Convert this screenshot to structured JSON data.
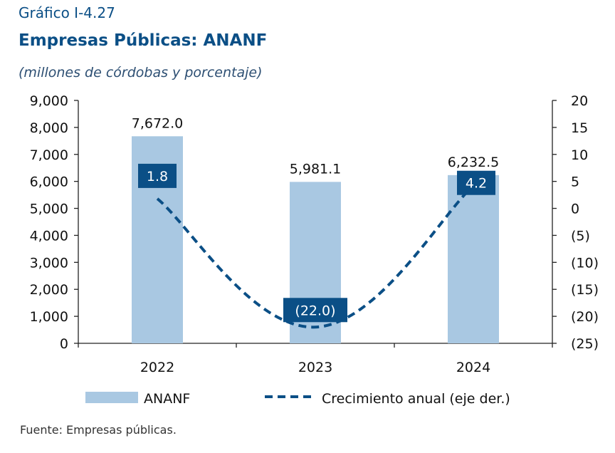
{
  "header": {
    "label": "Gráfico I-4.27",
    "title": "Empresas Públicas: ANANF",
    "subtitle": "(millones de córdobas y porcentaje)"
  },
  "source": "Fuente: Empresas públicas.",
  "colors": {
    "bar": "#a9c8e2",
    "line": "#0b4f86",
    "title": "#0b4f86",
    "axis": "#222222"
  },
  "chart_data": {
    "type": "bar",
    "categories": [
      "2022",
      "2023",
      "2024"
    ],
    "series": [
      {
        "name": "ANANF",
        "type": "bar",
        "axis": "left",
        "values": [
          7672.0,
          5981.1,
          6232.5
        ],
        "labels": [
          "7,672.0",
          "5,981.1",
          "6,232.5"
        ]
      },
      {
        "name": "Crecimiento anual (eje der.)",
        "type": "line",
        "style": "dashed",
        "axis": "right",
        "values": [
          1.8,
          -22.0,
          4.2
        ],
        "labels": [
          "1.8",
          "(22.0)",
          "4.2"
        ]
      }
    ],
    "y_left": {
      "range": [
        0,
        9000
      ],
      "ticks": [
        0,
        1000,
        2000,
        3000,
        4000,
        5000,
        6000,
        7000,
        8000,
        9000
      ],
      "tick_labels": [
        "0",
        "1,000",
        "2,000",
        "3,000",
        "4,000",
        "5,000",
        "6,000",
        "7,000",
        "8,000",
        "9,000"
      ]
    },
    "y_right": {
      "range": [
        -25,
        20
      ],
      "ticks": [
        -25,
        -20,
        -15,
        -10,
        -5,
        0,
        5,
        10,
        15,
        20
      ],
      "tick_labels": [
        "(25)",
        "(20)",
        "(15)",
        "(10)",
        "(5)",
        "0",
        "5",
        "10",
        "15",
        "20"
      ]
    },
    "grid": false,
    "legend": "bottom"
  }
}
